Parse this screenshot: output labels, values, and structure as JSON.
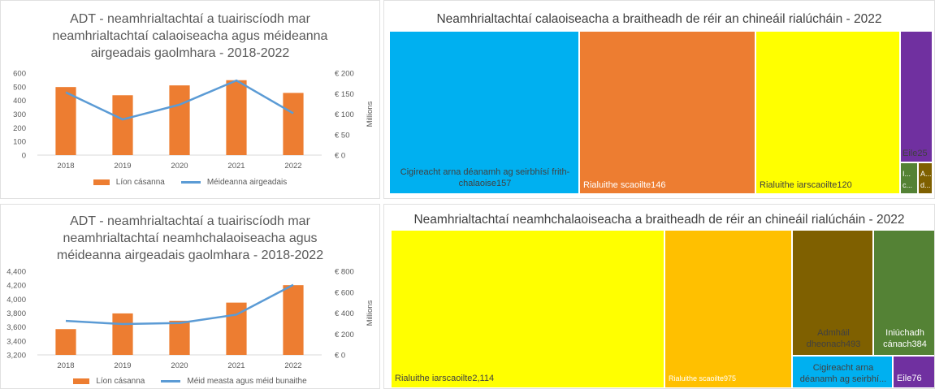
{
  "colors": {
    "bar": "#ed7d31",
    "line": "#5b9bd5",
    "blue": "#00b0f0",
    "orange": "#ed7d31",
    "yellow": "#ffff00",
    "gold": "#ffc000",
    "purple": "#7030a0",
    "green": "#548235",
    "brown": "#7f6000"
  },
  "chart_data": [
    {
      "type": "bar",
      "title": "ADT - neamhrialtachtaí a tuairiscíodh mar neamhrialtachtaí calaoiseacha agus méideanna airgeadais gaolmhara - 2018-2022",
      "categories": [
        "2018",
        "2019",
        "2020",
        "2021",
        "2022"
      ],
      "series": [
        {
          "name": "Líon cásanna",
          "kind": "bar",
          "axis": "left",
          "values": [
            498,
            438,
            510,
            548,
            455
          ]
        },
        {
          "name": "Méideanna airgeadais",
          "kind": "line",
          "axis": "right",
          "values": [
            153,
            87,
            123,
            182,
            102
          ]
        }
      ],
      "ylim": [
        0,
        600
      ],
      "yticks": [
        "0",
        "100",
        "200",
        "300",
        "400",
        "500",
        "600"
      ],
      "y2lim": [
        0,
        200
      ],
      "y2ticks": [
        "€ 0",
        "€ 50",
        "€ 100",
        "€ 150",
        "€ 200"
      ],
      "y2label": "Millions",
      "legend_position": "bottom",
      "grid": false
    },
    {
      "type": "treemap",
      "title": "Neamhrialtachtaí calaoiseacha a braitheadh de réir an chineáil rialúcháin - 2022",
      "items": [
        {
          "label": "Cigireacht arna déanamh ag seirbhísí frith-chalaoise157",
          "value": 157,
          "color": "#00b0f0"
        },
        {
          "label": "Rialuithe scaoilte146",
          "value": 146,
          "color": "#ed7d31"
        },
        {
          "label": "Rialuithe iarscaoilte120",
          "value": 120,
          "color": "#ffff00"
        },
        {
          "label": "Eile25",
          "value": 25,
          "color": "#7030a0"
        },
        {
          "label": "I... c...",
          "value": 4,
          "color": "#548235"
        },
        {
          "label": "A... d...",
          "value": 3,
          "color": "#7f6000"
        }
      ]
    },
    {
      "type": "bar",
      "title": "ADT - neamhrialtachtaí a tuairiscíodh mar neamhrialtachtaí neamhchalaoiseacha agus méideanna airgeadais gaolmhara - 2018-2022",
      "categories": [
        "2018",
        "2019",
        "2020",
        "2021",
        "2022"
      ],
      "series": [
        {
          "name": "Líon cásanna",
          "kind": "bar",
          "axis": "left",
          "values": [
            3570,
            3795,
            3690,
            3950,
            4200
          ]
        },
        {
          "name": "Méid measta agus méid bunaithe",
          "kind": "line",
          "axis": "right",
          "values": [
            325,
            295,
            305,
            385,
            670
          ]
        }
      ],
      "ylim": [
        3200,
        4400
      ],
      "yticks": [
        "3,200",
        "3,400",
        "3,600",
        "3,800",
        "4,000",
        "4,200",
        "4,400"
      ],
      "y2lim": [
        0,
        800
      ],
      "y2ticks": [
        "€ 0",
        "€ 200",
        "€ 400",
        "€ 600",
        "€ 800"
      ],
      "y2label": "Millions",
      "legend_position": "bottom",
      "grid": false
    },
    {
      "type": "treemap",
      "title": "Neamhrialtachtaí neamhchalaoiseacha a braitheadh de réir an chineáil rialúcháin - 2022",
      "items": [
        {
          "label": "Rialuithe iarscaoilte2,114",
          "value": 2114,
          "color": "#ffff00"
        },
        {
          "label": "Rialuithe scaoilte975",
          "value": 975,
          "color": "#ffc000"
        },
        {
          "label": "Admháil dheonach493",
          "value": 493,
          "color": "#7f6000"
        },
        {
          "label": "Iniúchadh cánach384",
          "value": 384,
          "color": "#548235"
        },
        {
          "label": "Cigireacht arna déanamh ag seirbhí...",
          "value": 210,
          "color": "#00b0f0"
        },
        {
          "label": "Eile76",
          "value": 76,
          "color": "#7030a0"
        }
      ]
    }
  ]
}
